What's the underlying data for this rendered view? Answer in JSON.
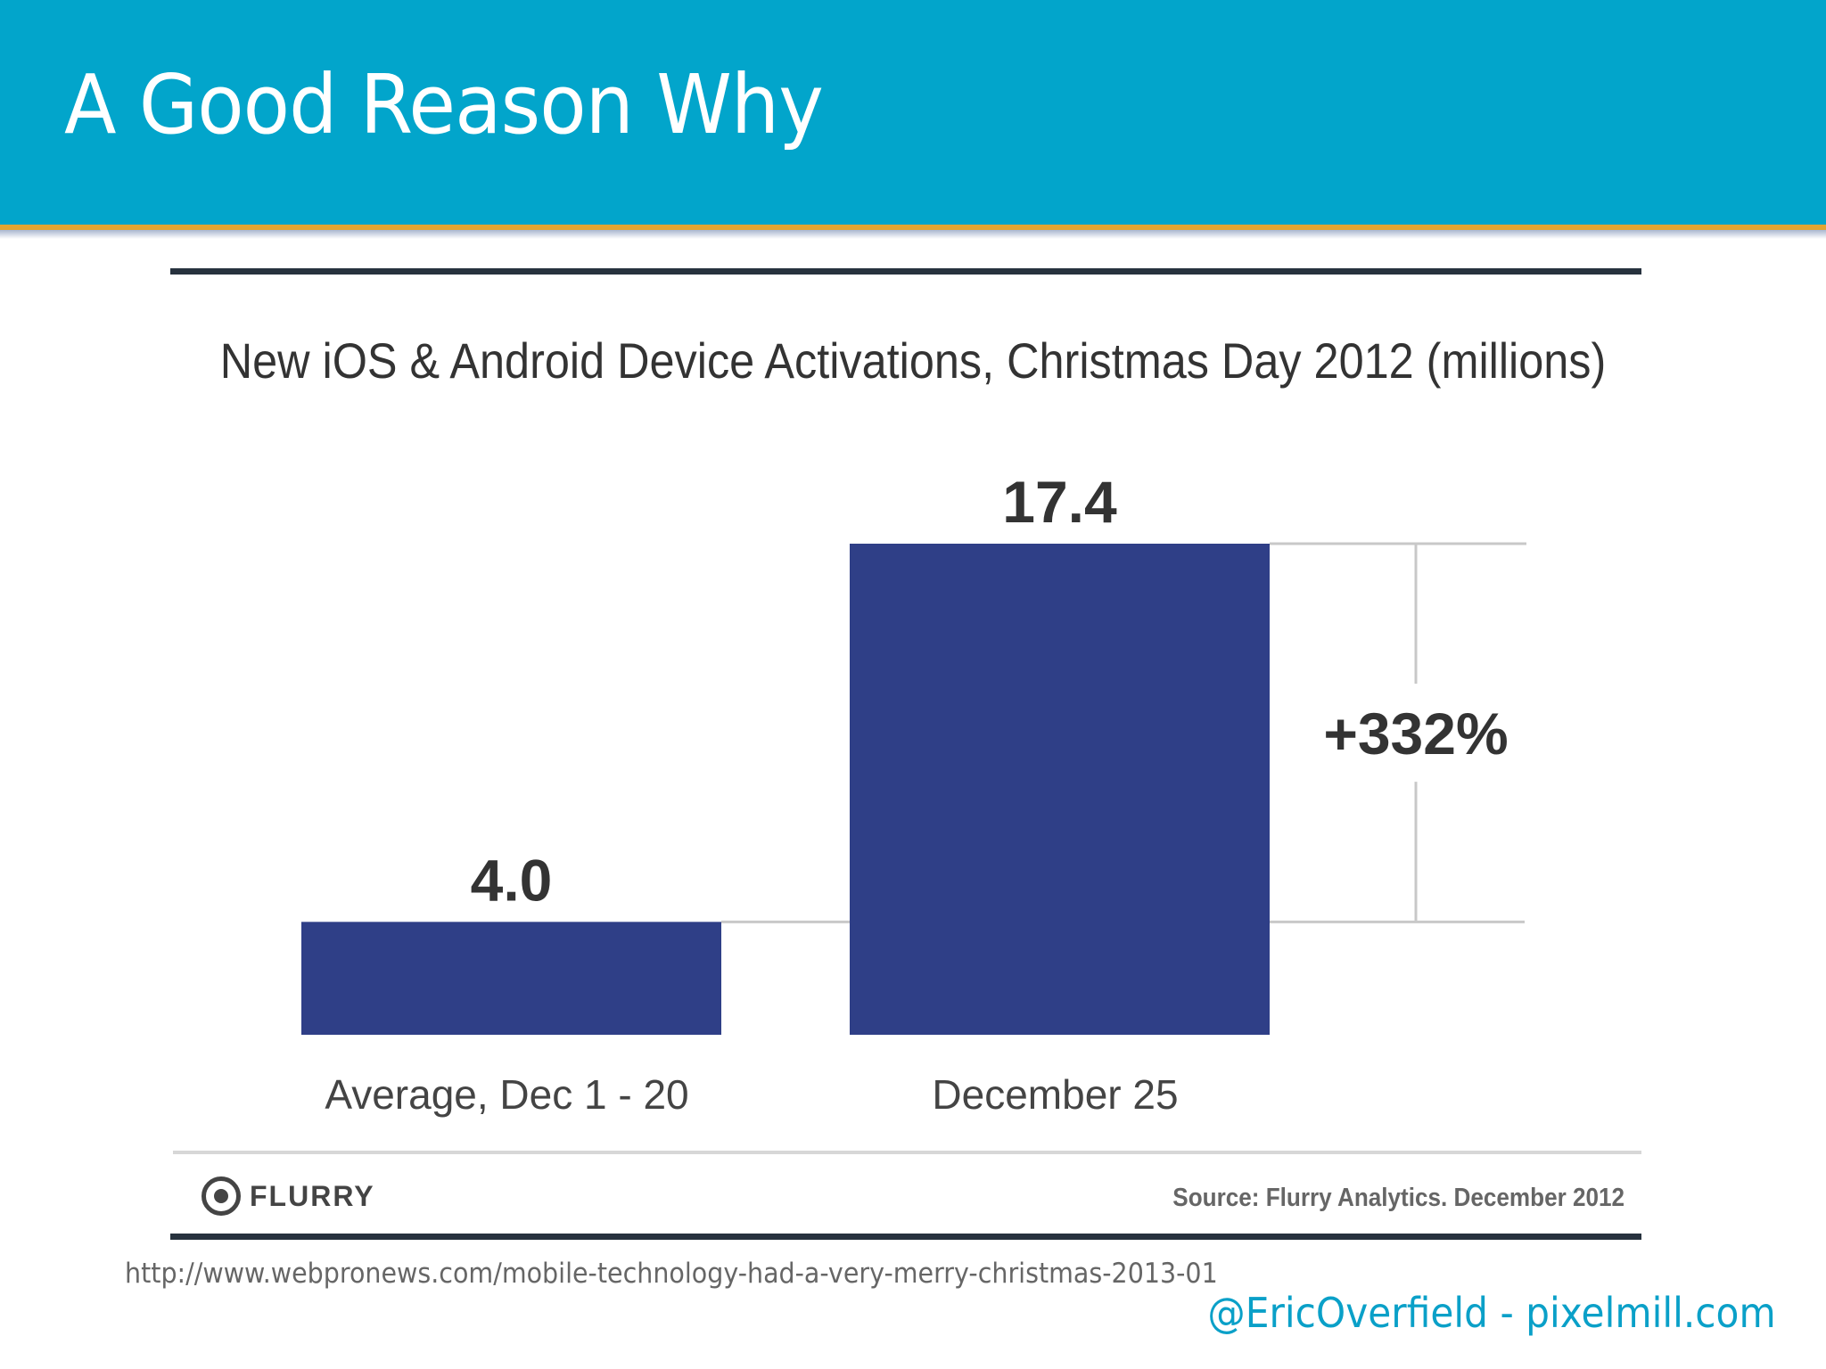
{
  "slide": {
    "title": "A Good Reason Why",
    "url": "http://www.webpronews.com/mobile-technology-had-a-very-merry-christmas-2013-01",
    "credit": "@EricOverfield - pixelmill.com"
  },
  "colors": {
    "header": "#02a5cb",
    "accent": "#e3a532",
    "bar": "#2f3f87",
    "credit": "#0aa0c8"
  },
  "chart_data": {
    "type": "bar",
    "title": "New iOS & Android Device Activations, Christmas Day 2012 (millions)",
    "categories": [
      "Average, Dec 1 - 20",
      "December 25"
    ],
    "values": [
      4.0,
      17.4
    ],
    "data_labels": [
      "4.0",
      "17.4"
    ],
    "annotation": "+332%",
    "ylim": [
      0,
      17.4
    ],
    "grid": false,
    "xlabel": "",
    "ylabel": "",
    "logo": "FLURRY",
    "source": "Source: Flurry Analytics. December 2012"
  }
}
